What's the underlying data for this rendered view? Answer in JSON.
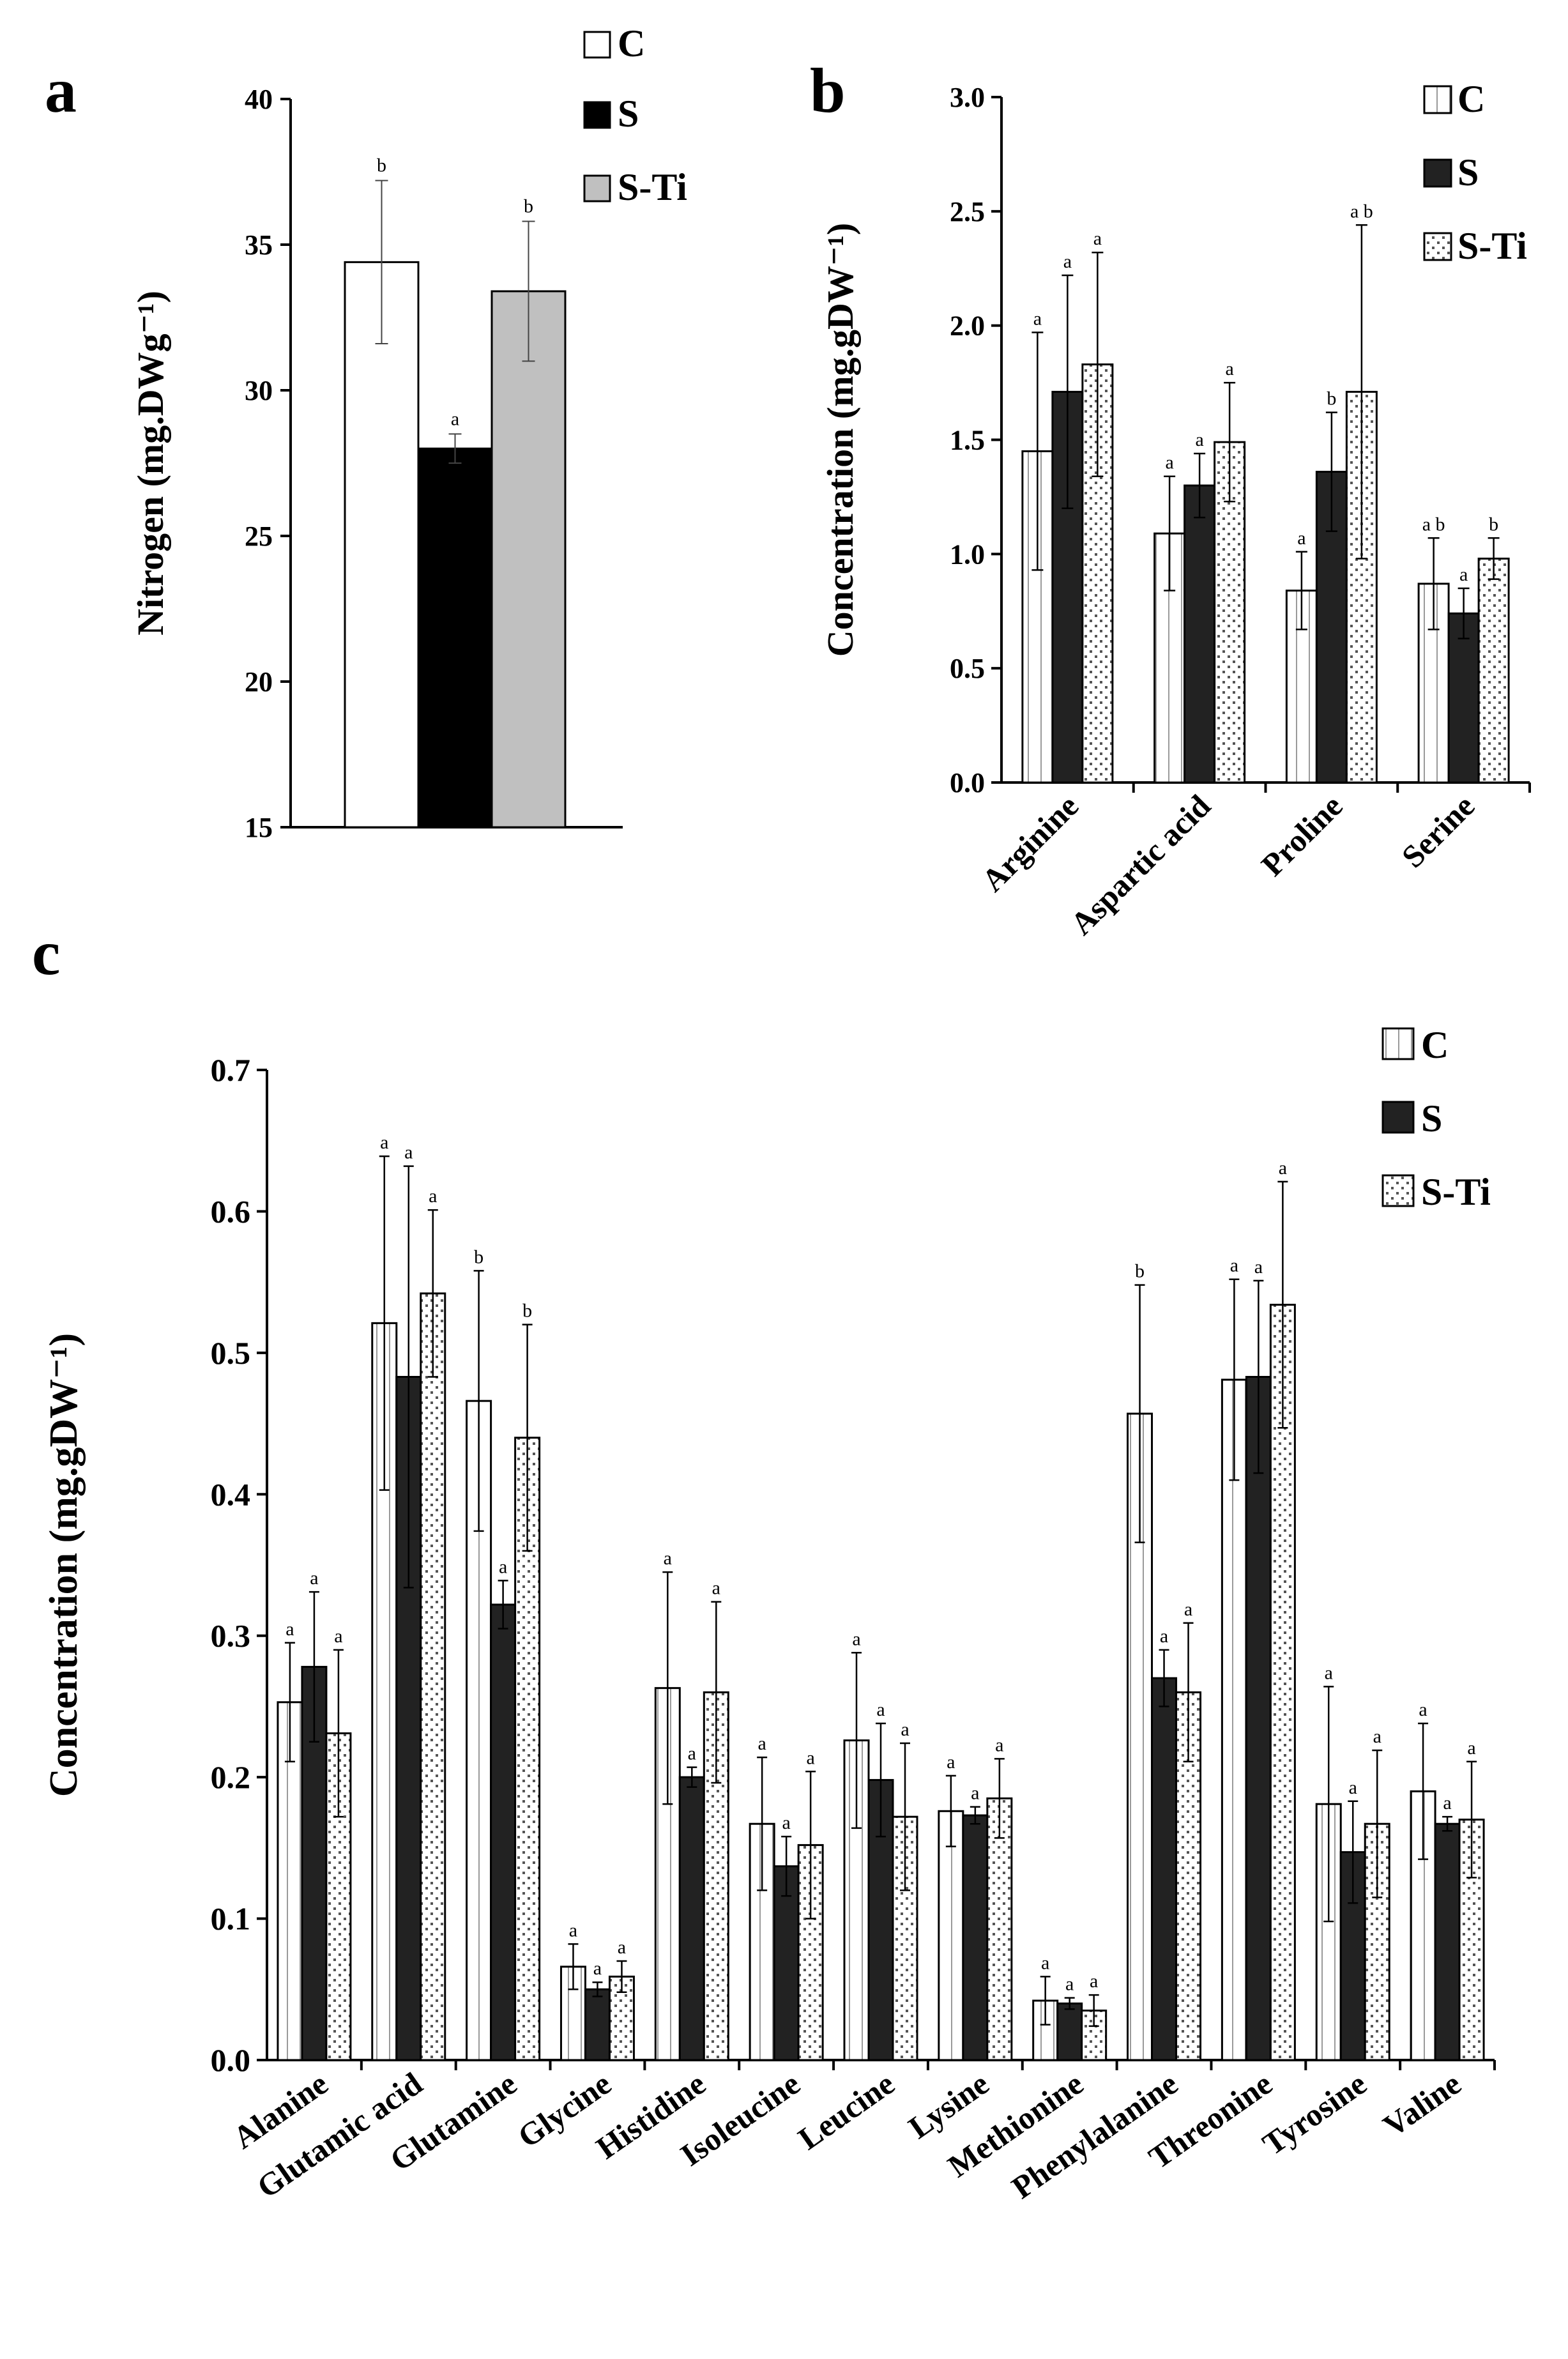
{
  "colors": {
    "C": "#ffffff",
    "S": "#000000",
    "S-Ti": "#c0c0c0"
  },
  "chart_data": [
    {
      "panel": "a",
      "type": "bar",
      "title": "",
      "xlabel": "",
      "ylabel": "Nitrogen (mg.DWg⁻¹)",
      "ylim": [
        15,
        40
      ],
      "yticks": [
        15,
        20,
        25,
        30,
        35,
        40
      ],
      "legend": [
        "C",
        "S",
        "S-Ti"
      ],
      "legend_position": "top-right",
      "series": [
        {
          "name": "C",
          "value": 34.4,
          "error": 2.8,
          "label": "b"
        },
        {
          "name": "S",
          "value": 28.0,
          "error": 0.5,
          "label": "a"
        },
        {
          "name": "S-Ti",
          "value": 33.4,
          "error": 2.4,
          "label": "b"
        }
      ]
    },
    {
      "panel": "b",
      "type": "bar",
      "title": "",
      "xlabel": "",
      "ylabel": "Concentration (mg.gDW⁻¹)",
      "ylim": [
        0.0,
        3.0
      ],
      "yticks": [
        "0.0",
        "0.5",
        "1.0",
        "1.5",
        "2.0",
        "2.5",
        "3.0"
      ],
      "legend": [
        "C",
        "S",
        "S-Ti"
      ],
      "legend_position": "top-right",
      "categories": [
        "Arginine",
        "Aspartic acid",
        "Proline",
        "Serine"
      ],
      "series": [
        {
          "name": "C",
          "values": [
            1.45,
            1.09,
            0.84,
            0.87
          ],
          "errors": [
            0.52,
            0.25,
            0.17,
            0.2
          ],
          "labels": [
            "a",
            "a",
            "a",
            "a b"
          ]
        },
        {
          "name": "S",
          "values": [
            1.71,
            1.3,
            1.36,
            0.74
          ],
          "errors": [
            0.51,
            0.14,
            0.26,
            0.11
          ],
          "labels": [
            "a",
            "a",
            "b",
            "a"
          ]
        },
        {
          "name": "S-Ti",
          "values": [
            1.83,
            1.49,
            1.71,
            0.98
          ],
          "errors": [
            0.49,
            0.26,
            0.73,
            0.09
          ],
          "labels": [
            "a",
            "a",
            "a b",
            "b"
          ]
        }
      ]
    },
    {
      "panel": "c",
      "type": "bar",
      "title": "",
      "xlabel": "",
      "ylabel": "Concentration (mg.gDW⁻¹)",
      "ylim": [
        0.0,
        0.7
      ],
      "yticks": [
        "0.0",
        "0.1",
        "0.2",
        "0.3",
        "0.4",
        "0.5",
        "0.6",
        "0.7"
      ],
      "legend": [
        "C",
        "S",
        "S-Ti"
      ],
      "legend_position": "top-right",
      "categories": [
        "Alanine",
        "Glutamic acid",
        "Glutamine",
        "Glycine",
        "Histidine",
        "Isoleucine",
        "Leucine",
        "Lysine",
        "Methionine",
        "Phenylalanine",
        "Threonine",
        "Tyrosine",
        "Valine"
      ],
      "series": [
        {
          "name": "C",
          "values": [
            0.253,
            0.521,
            0.466,
            0.066,
            0.263,
            0.167,
            0.226,
            0.176,
            0.042,
            0.457,
            0.481,
            0.181,
            0.19
          ],
          "errors": [
            0.042,
            0.118,
            0.092,
            0.016,
            0.082,
            0.047,
            0.062,
            0.025,
            0.017,
            0.091,
            0.071,
            0.083,
            0.048
          ],
          "labels": [
            "a",
            "a",
            "b",
            "a",
            "a",
            "a",
            "a",
            "a",
            "a",
            "b",
            "a",
            "a",
            "a"
          ]
        },
        {
          "name": "S",
          "values": [
            0.278,
            0.483,
            0.322,
            0.05,
            0.2,
            0.137,
            0.198,
            0.173,
            0.04,
            0.27,
            0.483,
            0.147,
            0.167
          ],
          "errors": [
            0.053,
            0.149,
            0.017,
            0.005,
            0.007,
            0.021,
            0.04,
            0.006,
            0.004,
            0.02,
            0.068,
            0.036,
            0.005
          ],
          "labels": [
            "a",
            "a",
            "a",
            "a",
            "a",
            "a",
            "a",
            "a",
            "a",
            "a",
            "a",
            "a",
            "a"
          ]
        },
        {
          "name": "S-Ti",
          "values": [
            0.231,
            0.542,
            0.44,
            0.059,
            0.26,
            0.152,
            0.172,
            0.185,
            0.035,
            0.26,
            0.534,
            0.167,
            0.17
          ],
          "errors": [
            0.059,
            0.059,
            0.08,
            0.011,
            0.064,
            0.052,
            0.052,
            0.028,
            0.011,
            0.049,
            0.087,
            0.052,
            0.041
          ],
          "labels": [
            "a",
            "a",
            "b",
            "a",
            "a",
            "a",
            "a",
            "a",
            "a",
            "a",
            "a",
            "a",
            "a"
          ]
        }
      ]
    }
  ]
}
